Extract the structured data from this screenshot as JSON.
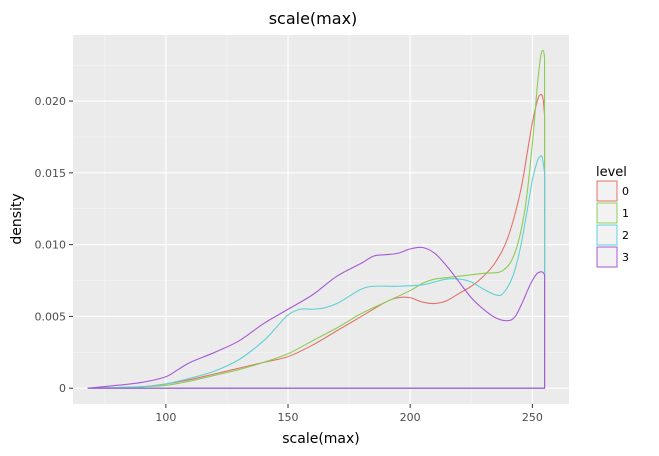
{
  "chart_data": {
    "type": "line",
    "title": "scale(max)",
    "xlabel": "scale(max)",
    "ylabel": "density",
    "xlim": [
      62,
      265
    ],
    "ylim": [
      -0.0011,
      0.0246
    ],
    "x_ticks": [
      100,
      150,
      200,
      250
    ],
    "x_tick_labels": [
      "100",
      "150",
      "200",
      "250"
    ],
    "y_ticks": [
      0,
      0.005,
      0.01,
      0.015,
      0.02
    ],
    "y_tick_labels": [
      "0",
      "0.005",
      "0.010",
      "0.015",
      "0.020"
    ],
    "grid": true,
    "legend": {
      "title": "level",
      "position": "right"
    },
    "series": [
      {
        "name": "0",
        "color": "#e0736a",
        "points": [
          [
            68,
            0
          ],
          [
            90,
            0.0001
          ],
          [
            100,
            0.0003
          ],
          [
            110,
            0.0006
          ],
          [
            120,
            0.001
          ],
          [
            130,
            0.0014
          ],
          [
            140,
            0.0018
          ],
          [
            150,
            0.0022
          ],
          [
            160,
            0.003
          ],
          [
            170,
            0.004
          ],
          [
            180,
            0.005
          ],
          [
            190,
            0.006
          ],
          [
            195,
            0.0063
          ],
          [
            200,
            0.0063
          ],
          [
            205,
            0.006
          ],
          [
            210,
            0.0059
          ],
          [
            215,
            0.0061
          ],
          [
            220,
            0.0066
          ],
          [
            225,
            0.0071
          ],
          [
            230,
            0.0078
          ],
          [
            235,
            0.0088
          ],
          [
            240,
            0.0105
          ],
          [
            245,
            0.0136
          ],
          [
            248,
            0.0165
          ],
          [
            250,
            0.0185
          ],
          [
            252,
            0.02
          ],
          [
            253,
            0.0204
          ],
          [
            254,
            0.0204
          ],
          [
            254.5,
            0.02
          ],
          [
            255,
            0.019
          ],
          [
            255,
            0
          ]
        ]
      },
      {
        "name": "1",
        "color": "#8ccc57",
        "points": [
          [
            68,
            0
          ],
          [
            90,
            0.0001
          ],
          [
            100,
            0.0002
          ],
          [
            110,
            0.0005
          ],
          [
            120,
            0.0009
          ],
          [
            130,
            0.0013
          ],
          [
            140,
            0.0018
          ],
          [
            150,
            0.0024
          ],
          [
            160,
            0.0033
          ],
          [
            170,
            0.0042
          ],
          [
            180,
            0.0052
          ],
          [
            190,
            0.006
          ],
          [
            200,
            0.0068
          ],
          [
            205,
            0.0073
          ],
          [
            210,
            0.0076
          ],
          [
            215,
            0.0077
          ],
          [
            220,
            0.0078
          ],
          [
            230,
            0.008
          ],
          [
            238,
            0.0082
          ],
          [
            243,
            0.0095
          ],
          [
            247,
            0.0125
          ],
          [
            250,
            0.017
          ],
          [
            252,
            0.021
          ],
          [
            253.5,
            0.0232
          ],
          [
            254.5,
            0.0235
          ],
          [
            255,
            0.023
          ],
          [
            255,
            0
          ]
        ]
      },
      {
        "name": "2",
        "color": "#5fd1d6",
        "points": [
          [
            68,
            0
          ],
          [
            90,
            0.0001
          ],
          [
            100,
            0.0003
          ],
          [
            110,
            0.0007
          ],
          [
            120,
            0.0012
          ],
          [
            130,
            0.002
          ],
          [
            140,
            0.0033
          ],
          [
            145,
            0.0042
          ],
          [
            150,
            0.0051
          ],
          [
            155,
            0.0055
          ],
          [
            160,
            0.0055
          ],
          [
            165,
            0.0056
          ],
          [
            170,
            0.0059
          ],
          [
            175,
            0.0064
          ],
          [
            180,
            0.0069
          ],
          [
            185,
            0.0071
          ],
          [
            195,
            0.0071
          ],
          [
            205,
            0.0072
          ],
          [
            210,
            0.0074
          ],
          [
            215,
            0.0076
          ],
          [
            220,
            0.0076
          ],
          [
            225,
            0.0074
          ],
          [
            230,
            0.0069
          ],
          [
            235,
            0.0065
          ],
          [
            238,
            0.0066
          ],
          [
            242,
            0.0078
          ],
          [
            245,
            0.0097
          ],
          [
            248,
            0.0125
          ],
          [
            250,
            0.0145
          ],
          [
            252,
            0.0158
          ],
          [
            253,
            0.0161
          ],
          [
            254,
            0.0161
          ],
          [
            255,
            0.015
          ],
          [
            255,
            0
          ]
        ]
      },
      {
        "name": "3",
        "color": "#a55ad6",
        "points": [
          [
            68,
            0
          ],
          [
            80,
            0.0002
          ],
          [
            90,
            0.0004
          ],
          [
            100,
            0.0008
          ],
          [
            105,
            0.0013
          ],
          [
            110,
            0.0018
          ],
          [
            120,
            0.0025
          ],
          [
            130,
            0.0033
          ],
          [
            140,
            0.0045
          ],
          [
            150,
            0.0055
          ],
          [
            160,
            0.0065
          ],
          [
            170,
            0.0078
          ],
          [
            180,
            0.0087
          ],
          [
            185,
            0.0092
          ],
          [
            190,
            0.0093
          ],
          [
            195,
            0.0094
          ],
          [
            200,
            0.0097
          ],
          [
            205,
            0.0098
          ],
          [
            210,
            0.0094
          ],
          [
            215,
            0.0085
          ],
          [
            220,
            0.0074
          ],
          [
            225,
            0.0063
          ],
          [
            230,
            0.0055
          ],
          [
            235,
            0.0049
          ],
          [
            240,
            0.0047
          ],
          [
            243,
            0.005
          ],
          [
            246,
            0.006
          ],
          [
            248,
            0.0068
          ],
          [
            250,
            0.0075
          ],
          [
            252,
            0.008
          ],
          [
            254,
            0.0081
          ],
          [
            255,
            0.0079
          ],
          [
            255,
            0
          ]
        ]
      }
    ]
  }
}
